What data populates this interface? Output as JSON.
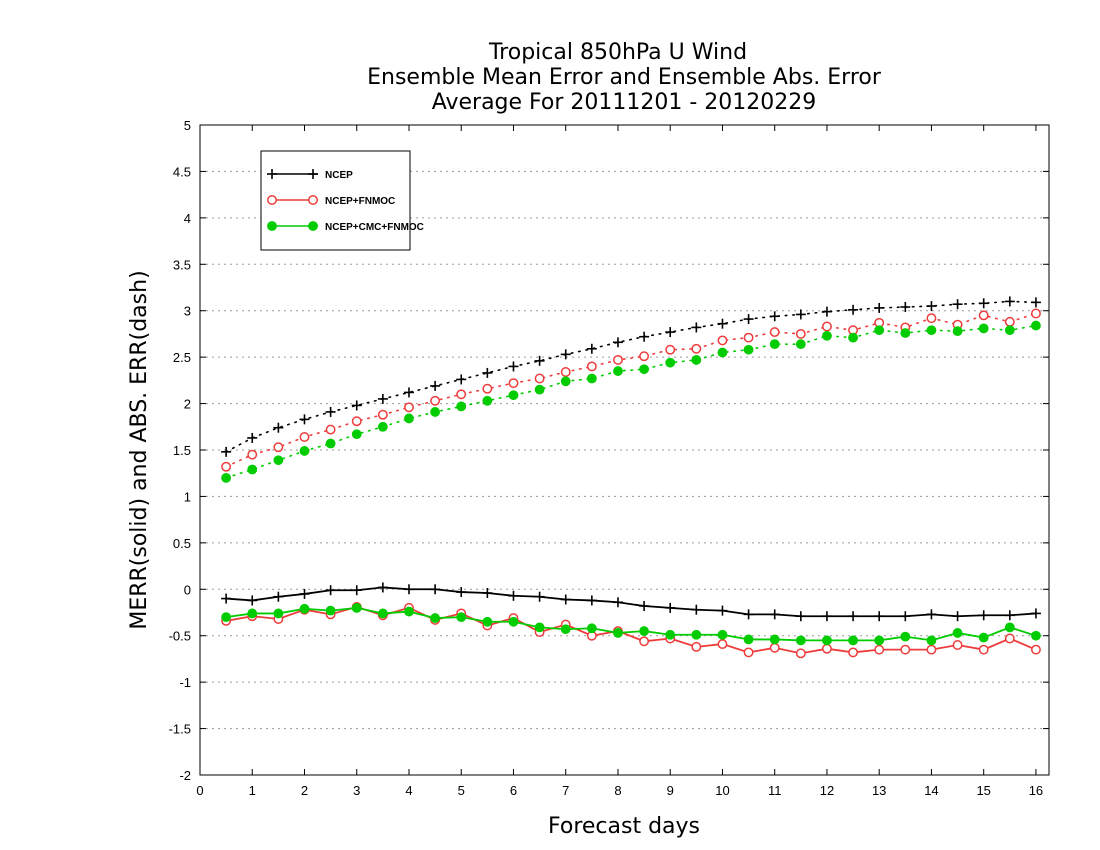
{
  "chart_data": {
    "type": "line",
    "title": [
      "Tropical 850hPa U Wind",
      "Ensemble Mean Error and Ensemble Abs. Error",
      "Average For 20111201 - 20120229"
    ],
    "xlabel": "Forecast days",
    "ylabel": "MERR(solid) and ABS. ERR(dash)",
    "xlim": [
      0,
      16.25
    ],
    "ylim": [
      -2,
      5
    ],
    "x_ticks": [
      "0",
      "1",
      "2",
      "3",
      "4",
      "5",
      "6",
      "7",
      "8",
      "9",
      "10",
      "11",
      "12",
      "13",
      "14",
      "15",
      "16"
    ],
    "y_ticks": [
      "-2",
      "-1.5",
      "-1",
      "-0.5",
      "0",
      "0.5",
      "1",
      "1.5",
      "2",
      "2.5",
      "3",
      "3.5",
      "4",
      "4.5",
      "5"
    ],
    "y_tick_values": [
      -2,
      -1.5,
      -1,
      -0.5,
      0,
      0.5,
      1,
      1.5,
      2,
      2.5,
      3,
      3.5,
      4,
      4.5,
      5
    ],
    "grid": true,
    "legend_position": "top-left",
    "x": [
      0.5,
      1,
      1.5,
      2,
      2.5,
      3,
      3.5,
      4,
      4.5,
      5,
      5.5,
      6,
      6.5,
      7,
      7.5,
      8,
      8.5,
      9,
      9.5,
      10,
      10.5,
      11,
      11.5,
      12,
      12.5,
      13,
      13.5,
      14,
      14.5,
      15,
      15.5,
      16
    ],
    "series": [
      {
        "name": "NCEP",
        "color": "#000000",
        "marker": "plus",
        "abs_err": [
          1.48,
          1.63,
          1.74,
          1.83,
          1.91,
          1.98,
          2.05,
          2.12,
          2.19,
          2.26,
          2.33,
          2.4,
          2.46,
          2.53,
          2.59,
          2.66,
          2.72,
          2.77,
          2.82,
          2.86,
          2.91,
          2.94,
          2.96,
          2.99,
          3.01,
          3.03,
          3.04,
          3.05,
          3.07,
          3.08,
          3.1,
          3.09
        ],
        "mean_err": [
          -0.1,
          -0.12,
          -0.08,
          -0.05,
          -0.01,
          -0.01,
          0.02,
          0.0,
          0.0,
          -0.03,
          -0.04,
          -0.07,
          -0.08,
          -0.11,
          -0.12,
          -0.14,
          -0.18,
          -0.2,
          -0.22,
          -0.23,
          -0.27,
          -0.27,
          -0.29,
          -0.29,
          -0.29,
          -0.29,
          -0.29,
          -0.27,
          -0.29,
          -0.28,
          -0.28,
          -0.26
        ]
      },
      {
        "name": "NCEP+FNMOC",
        "color": "#ee3b3b",
        "marker": "open-circle",
        "abs_err": [
          1.32,
          1.45,
          1.53,
          1.64,
          1.72,
          1.81,
          1.88,
          1.96,
          2.03,
          2.1,
          2.16,
          2.22,
          2.27,
          2.34,
          2.4,
          2.47,
          2.51,
          2.58,
          2.59,
          2.68,
          2.71,
          2.77,
          2.75,
          2.83,
          2.79,
          2.87,
          2.82,
          2.92,
          2.85,
          2.95,
          2.88,
          2.97
        ],
        "mean_err": [
          -0.34,
          -0.29,
          -0.32,
          -0.22,
          -0.27,
          -0.19,
          -0.28,
          -0.2,
          -0.33,
          -0.26,
          -0.39,
          -0.31,
          -0.46,
          -0.38,
          -0.5,
          -0.45,
          -0.56,
          -0.53,
          -0.62,
          -0.59,
          -0.68,
          -0.63,
          -0.69,
          -0.64,
          -0.68,
          -0.65,
          -0.65,
          -0.65,
          -0.6,
          -0.65,
          -0.53,
          -0.65
        ]
      },
      {
        "name": "NCEP+CMC+FNMOC",
        "color": "#00cc00",
        "marker": "filled-circle",
        "abs_err": [
          1.2,
          1.29,
          1.39,
          1.49,
          1.57,
          1.67,
          1.75,
          1.84,
          1.91,
          1.97,
          2.03,
          2.09,
          2.15,
          2.24,
          2.27,
          2.35,
          2.37,
          2.44,
          2.47,
          2.55,
          2.58,
          2.64,
          2.64,
          2.73,
          2.71,
          2.79,
          2.76,
          2.79,
          2.78,
          2.81,
          2.79,
          2.84
        ],
        "mean_err": [
          -0.3,
          -0.26,
          -0.26,
          -0.21,
          -0.23,
          -0.2,
          -0.26,
          -0.24,
          -0.31,
          -0.3,
          -0.35,
          -0.35,
          -0.41,
          -0.43,
          -0.42,
          -0.47,
          -0.45,
          -0.49,
          -0.49,
          -0.49,
          -0.54,
          -0.54,
          -0.55,
          -0.55,
          -0.55,
          -0.55,
          -0.51,
          -0.55,
          -0.47,
          -0.52,
          -0.41,
          -0.5
        ]
      }
    ]
  }
}
